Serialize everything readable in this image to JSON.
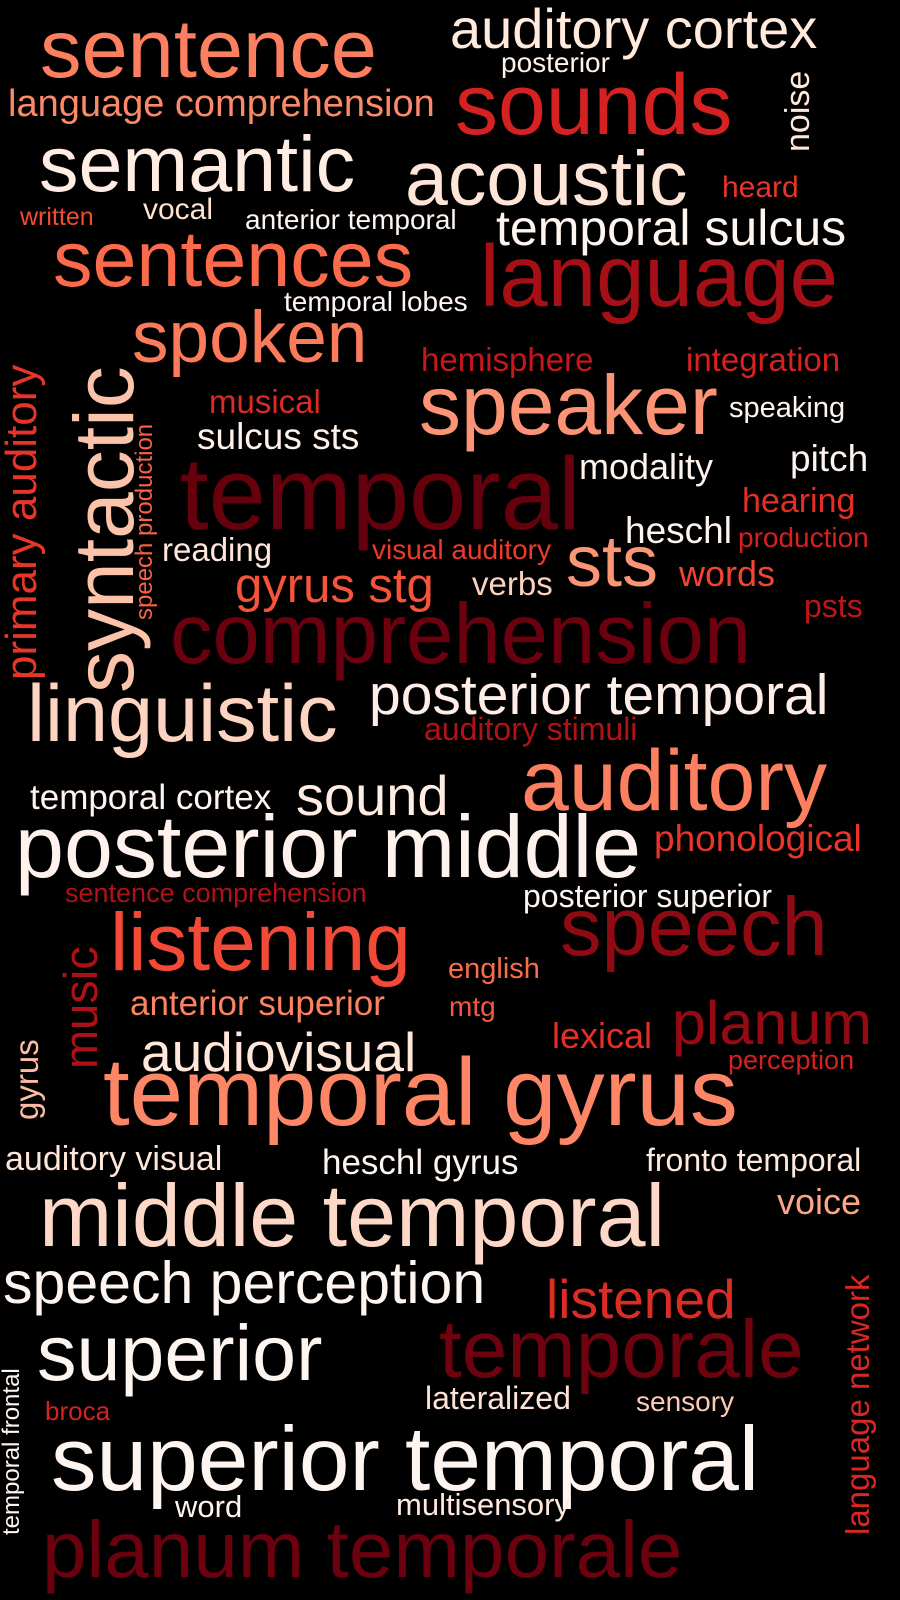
{
  "words": [
    {
      "text": "sentence",
      "color": "#fc7f60"
    },
    {
      "text": "auditory cortex",
      "color": "#ffeadc"
    },
    {
      "text": "posterior",
      "color": "#fff4ec"
    },
    {
      "text": "language comprehension",
      "color": "#fc8a69"
    },
    {
      "text": "sounds",
      "color": "#d52221"
    },
    {
      "text": "noise",
      "color": "#ffe8da"
    },
    {
      "text": "semantic",
      "color": "#ffede3"
    },
    {
      "text": "acoustic",
      "color": "#fee5d8"
    },
    {
      "text": "heard",
      "color": "#e83429"
    },
    {
      "text": "written",
      "color": "#f44b32"
    },
    {
      "text": "vocal",
      "color": "#fee2d2"
    },
    {
      "text": "anterior temporal",
      "color": "#fff5f0"
    },
    {
      "text": "temporal sulcus",
      "color": "#fff5f0"
    },
    {
      "text": "sentences",
      "color": "#fb6b4b"
    },
    {
      "text": "language",
      "color": "#a50f15"
    },
    {
      "text": "temporal lobes",
      "color": "#fff5f0"
    },
    {
      "text": "primary auditory",
      "color": "#e7352a"
    },
    {
      "text": "spoken",
      "color": "#fb7b5b"
    },
    {
      "text": "syntactic",
      "color": "#fcc3ab"
    },
    {
      "text": "speech production",
      "color": "#f96246"
    },
    {
      "text": "hemisphere",
      "color": "#c7171c"
    },
    {
      "text": "integration",
      "color": "#d52221"
    },
    {
      "text": "musical",
      "color": "#dc2a25"
    },
    {
      "text": "speaker",
      "color": "#fc9374"
    },
    {
      "text": "speaking",
      "color": "#fff5f0"
    },
    {
      "text": "sulcus sts",
      "color": "#fff0e8"
    },
    {
      "text": "temporal",
      "color": "#67000d"
    },
    {
      "text": "modality",
      "color": "#fff3ed"
    },
    {
      "text": "pitch",
      "color": "#fff5f0"
    },
    {
      "text": "hearing",
      "color": "#e32f27"
    },
    {
      "text": "heschl",
      "color": "#fff5f0"
    },
    {
      "text": "production",
      "color": "#d52221"
    },
    {
      "text": "reading",
      "color": "#ffe6da"
    },
    {
      "text": "visual auditory",
      "color": "#ee3a2c"
    },
    {
      "text": "sts",
      "color": "#fc9575"
    },
    {
      "text": "gyrus stg",
      "color": "#f5533a"
    },
    {
      "text": "verbs",
      "color": "#fdd1bf"
    },
    {
      "text": "words",
      "color": "#f14432"
    },
    {
      "text": "psts",
      "color": "#bd151a"
    },
    {
      "text": "comprehension",
      "color": "#6b010e"
    },
    {
      "text": "linguistic",
      "color": "#fdd3c1"
    },
    {
      "text": "posterior temporal",
      "color": "#ffeee6"
    },
    {
      "text": "auditory stimuli",
      "color": "#b11218"
    },
    {
      "text": "temporal cortex",
      "color": "#fff5f0"
    },
    {
      "text": "sound",
      "color": "#ffece3"
    },
    {
      "text": "auditory",
      "color": "#fc7f5f"
    },
    {
      "text": "posterior middle",
      "color": "#fff2ec"
    },
    {
      "text": "phonological",
      "color": "#e93529"
    },
    {
      "text": "sentence comprehension",
      "color": "#b11218"
    },
    {
      "text": "posterior superior",
      "color": "#fff5f0"
    },
    {
      "text": "music",
      "color": "#ad1117"
    },
    {
      "text": "listening",
      "color": "#f24a36"
    },
    {
      "text": "english",
      "color": "#fb6c4c"
    },
    {
      "text": "speech",
      "color": "#8f0a12"
    },
    {
      "text": "anterior superior",
      "color": "#fc8262"
    },
    {
      "text": "mtg",
      "color": "#f4573e"
    },
    {
      "text": "gyrus",
      "color": "#fcbca2"
    },
    {
      "text": "audiovisual",
      "color": "#ffe7db"
    },
    {
      "text": "lexical",
      "color": "#e32f27"
    },
    {
      "text": "planum",
      "color": "#960b13"
    },
    {
      "text": "perception",
      "color": "#d42121"
    },
    {
      "text": "temporal gyrus",
      "color": "#fc8666"
    },
    {
      "text": "auditory visual",
      "color": "#fee6d8"
    },
    {
      "text": "heschl gyrus",
      "color": "#fff5f0"
    },
    {
      "text": "fronto temporal",
      "color": "#ffe8dc"
    },
    {
      "text": "middle temporal",
      "color": "#fdd8c7"
    },
    {
      "text": "voice",
      "color": "#fca486"
    },
    {
      "text": "speech perception",
      "color": "#fff5f0"
    },
    {
      "text": "listened",
      "color": "#dd2c25"
    },
    {
      "text": "language network",
      "color": "#d92723"
    },
    {
      "text": "superior",
      "color": "#fff5f0"
    },
    {
      "text": "temporale",
      "color": "#6e020e"
    },
    {
      "text": "temporal frontal",
      "color": "#fff5f0"
    },
    {
      "text": "lateralized",
      "color": "#fee2d5"
    },
    {
      "text": "sensory",
      "color": "#fdcab5"
    },
    {
      "text": "broca",
      "color": "#d52221"
    },
    {
      "text": "superior temporal",
      "color": "#fff5f0"
    },
    {
      "text": "word",
      "color": "#fff3ed"
    },
    {
      "text": "multisensory",
      "color": "#fee9df"
    },
    {
      "text": "planum temporale",
      "color": "#6b010e"
    }
  ]
}
